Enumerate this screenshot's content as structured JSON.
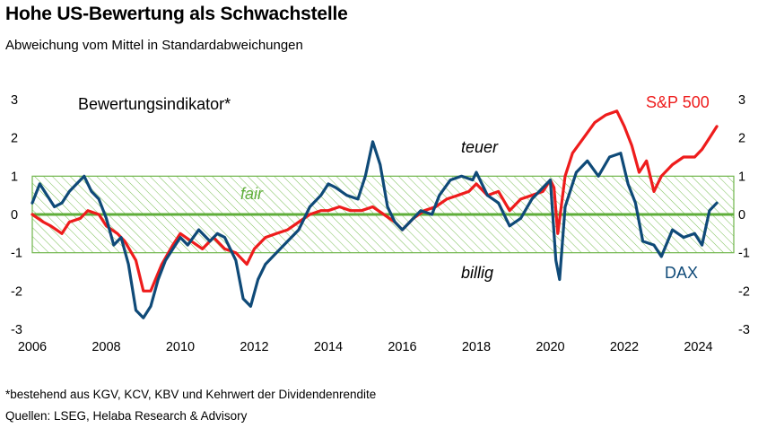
{
  "title": "Hohe US-Bewertung als Schwachstelle",
  "subtitle": "Abweichung vom Mittel in Standardabweichungen",
  "footnote": "*bestehend aus KGV, KCV, KBV und Kehrwert der Dividendenrendite",
  "source": "Quellen: LSEG, Helaba Research & Advisory",
  "colors": {
    "sp500": "#ee1c1c",
    "dax": "#0f4a78",
    "fair_band": "#6fb54a",
    "zero_line": "#5fae3a"
  },
  "chart_data": {
    "type": "line",
    "indicator_label": "Bewertungsindikator*",
    "xlim": [
      2006,
      2024.8
    ],
    "ylim": [
      -3,
      3
    ],
    "x_ticks": [
      "2006",
      "2008",
      "2010",
      "2012",
      "2014",
      "2016",
      "2018",
      "2020",
      "2022",
      "2024"
    ],
    "y_ticks": [
      "3",
      "2",
      "1",
      "0",
      "-1",
      "-2",
      "-3"
    ],
    "annotations": {
      "fair": "fair",
      "teuer": "teuer",
      "billig": "billig"
    },
    "band": {
      "label": "fair",
      "from": -1,
      "to": 1
    },
    "series": [
      {
        "name": "S&P 500",
        "key": "sp500",
        "x": [
          2006.0,
          2006.3,
          2006.5,
          2006.8,
          2007.0,
          2007.3,
          2007.5,
          2007.8,
          2008.0,
          2008.3,
          2008.5,
          2008.8,
          2009.0,
          2009.2,
          2009.5,
          2009.8,
          2010.0,
          2010.3,
          2010.6,
          2010.9,
          2011.2,
          2011.5,
          2011.8,
          2012.0,
          2012.3,
          2012.6,
          2012.9,
          2013.2,
          2013.5,
          2013.8,
          2014.0,
          2014.3,
          2014.6,
          2014.9,
          2015.2,
          2015.5,
          2015.8,
          2016.0,
          2016.3,
          2016.6,
          2016.9,
          2017.2,
          2017.5,
          2017.8,
          2018.0,
          2018.3,
          2018.6,
          2018.9,
          2019.2,
          2019.5,
          2019.8,
          2020.0,
          2020.1,
          2020.2,
          2020.4,
          2020.6,
          2020.9,
          2021.2,
          2021.5,
          2021.8,
          2022.0,
          2022.2,
          2022.4,
          2022.6,
          2022.8,
          2023.0,
          2023.3,
          2023.6,
          2023.9,
          2024.1,
          2024.3,
          2024.5
        ],
        "values": [
          0.0,
          -0.2,
          -0.3,
          -0.5,
          -0.2,
          -0.1,
          0.1,
          0.0,
          -0.3,
          -0.5,
          -0.7,
          -1.2,
          -2.0,
          -2.0,
          -1.3,
          -0.8,
          -0.5,
          -0.7,
          -0.9,
          -0.6,
          -0.9,
          -1.0,
          -1.3,
          -0.9,
          -0.6,
          -0.5,
          -0.4,
          -0.2,
          0.0,
          0.1,
          0.1,
          0.2,
          0.1,
          0.1,
          0.2,
          0.0,
          -0.2,
          -0.4,
          -0.1,
          0.1,
          0.2,
          0.4,
          0.5,
          0.6,
          0.8,
          0.5,
          0.6,
          0.1,
          0.4,
          0.5,
          0.6,
          0.9,
          0.7,
          -0.5,
          1.0,
          1.6,
          2.0,
          2.4,
          2.6,
          2.7,
          2.3,
          1.8,
          1.1,
          1.4,
          0.6,
          1.0,
          1.3,
          1.5,
          1.5,
          1.7,
          2.0,
          2.3
        ]
      },
      {
        "name": "DAX",
        "key": "dax",
        "x": [
          2006.0,
          2006.2,
          2006.4,
          2006.6,
          2006.8,
          2007.0,
          2007.2,
          2007.4,
          2007.6,
          2007.8,
          2008.0,
          2008.2,
          2008.4,
          2008.6,
          2008.8,
          2009.0,
          2009.2,
          2009.4,
          2009.6,
          2009.8,
          2010.0,
          2010.2,
          2010.5,
          2010.8,
          2011.0,
          2011.2,
          2011.5,
          2011.7,
          2011.9,
          2012.1,
          2012.3,
          2012.6,
          2012.9,
          2013.2,
          2013.5,
          2013.8,
          2014.0,
          2014.2,
          2014.5,
          2014.8,
          2015.0,
          2015.2,
          2015.4,
          2015.6,
          2015.8,
          2016.0,
          2016.2,
          2016.5,
          2016.8,
          2017.0,
          2017.3,
          2017.6,
          2017.9,
          2018.0,
          2018.3,
          2018.6,
          2018.9,
          2019.2,
          2019.5,
          2019.8,
          2020.0,
          2020.15,
          2020.25,
          2020.4,
          2020.7,
          2021.0,
          2021.3,
          2021.6,
          2021.9,
          2022.1,
          2022.3,
          2022.5,
          2022.8,
          2023.0,
          2023.3,
          2023.6,
          2023.9,
          2024.1,
          2024.3,
          2024.5
        ],
        "values": [
          0.3,
          0.8,
          0.5,
          0.2,
          0.3,
          0.6,
          0.8,
          1.0,
          0.6,
          0.4,
          -0.1,
          -0.8,
          -0.6,
          -1.3,
          -2.5,
          -2.7,
          -2.4,
          -1.7,
          -1.2,
          -0.9,
          -0.6,
          -0.8,
          -0.4,
          -0.7,
          -0.5,
          -0.6,
          -1.2,
          -2.2,
          -2.4,
          -1.7,
          -1.3,
          -1.0,
          -0.7,
          -0.4,
          0.2,
          0.5,
          0.8,
          0.7,
          0.5,
          0.4,
          1.0,
          1.9,
          1.3,
          0.2,
          -0.2,
          -0.4,
          -0.2,
          0.1,
          0.0,
          0.5,
          0.9,
          1.0,
          0.9,
          1.1,
          0.5,
          0.3,
          -0.3,
          -0.1,
          0.4,
          0.7,
          0.9,
          -1.2,
          -1.7,
          0.2,
          1.1,
          1.4,
          1.0,
          1.5,
          1.6,
          0.8,
          0.3,
          -0.7,
          -0.8,
          -1.1,
          -0.4,
          -0.6,
          -0.5,
          -0.8,
          0.1,
          0.3
        ]
      }
    ]
  }
}
